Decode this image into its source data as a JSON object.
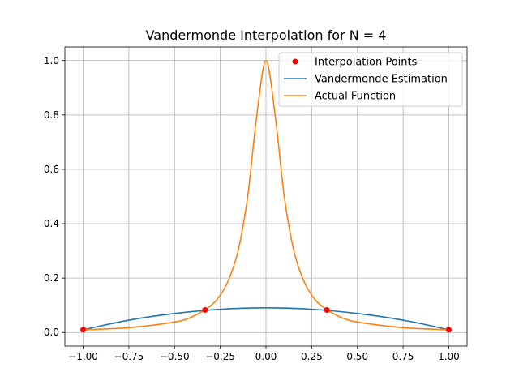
{
  "chart_data": {
    "type": "line",
    "title": "Vandermonde Interpolation for N = 4",
    "xlabel": "",
    "ylabel": "",
    "xlim": [
      -1.1,
      1.1
    ],
    "ylim": [
      -0.05,
      1.05
    ],
    "grid": true,
    "legend_position": "top-right",
    "x_ticks": [
      -1.0,
      -0.75,
      -0.5,
      -0.25,
      0.0,
      0.25,
      0.5,
      0.75,
      1.0
    ],
    "x_tick_labels": [
      "−1.00",
      "−0.75",
      "−0.50",
      "−0.25",
      "0.00",
      "0.25",
      "0.50",
      "0.75",
      "1.00"
    ],
    "y_ticks": [
      0.0,
      0.2,
      0.4,
      0.6,
      0.8,
      1.0
    ],
    "y_tick_labels": [
      "0.0",
      "0.2",
      "0.4",
      "0.6",
      "0.8",
      "1.0"
    ],
    "interpolation_points": {
      "name": "Interpolation Points",
      "color": "#ff0000",
      "x": [
        -1.0,
        -0.3333,
        0.3333,
        1.0
      ],
      "y": [
        0.0099,
        0.0826,
        0.0826,
        0.0099
      ]
    },
    "series": [
      {
        "name": "Vandermonde Estimation",
        "color": "#1f77b4",
        "x": [
          -1.0,
          -0.75,
          -0.5,
          -0.25,
          0.0,
          0.25,
          0.5,
          0.75,
          1.0
        ],
        "y": [
          0.0099,
          0.0453,
          0.0697,
          0.0853,
          0.0906,
          0.0853,
          0.0697,
          0.0453,
          0.0099
        ]
      },
      {
        "name": "Actual Function",
        "color": "#ff7f0e",
        "x": [
          -1.0,
          -0.75,
          -0.5,
          -0.4,
          -0.3,
          -0.25,
          -0.2,
          -0.15,
          -0.1,
          -0.05,
          0.0,
          0.05,
          0.1,
          0.15,
          0.2,
          0.25,
          0.3,
          0.4,
          0.5,
          0.75,
          1.0
        ],
        "y": [
          0.0099,
          0.0175,
          0.0385,
          0.0588,
          0.1,
          0.1379,
          0.2,
          0.3077,
          0.5,
          0.8,
          1.0,
          0.8,
          0.5,
          0.3077,
          0.2,
          0.1379,
          0.1,
          0.0588,
          0.0385,
          0.0175,
          0.0099
        ]
      }
    ]
  }
}
